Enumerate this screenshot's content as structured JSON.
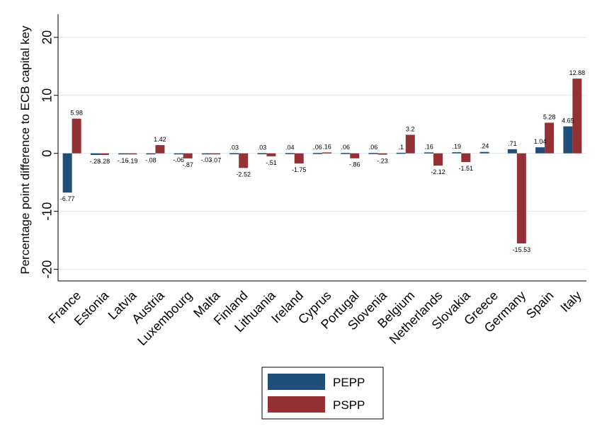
{
  "chart_data": {
    "type": "bar",
    "ylabel": "Percentage point difference to ECB capital key",
    "xlabel": "",
    "ylim": [
      -22,
      24
    ],
    "yticks": [
      -20,
      -10,
      0,
      10,
      20
    ],
    "ytick_labels": [
      "-20",
      "-10",
      "0",
      "10",
      "20"
    ],
    "grid": true,
    "legend_position": "bottom",
    "categories": [
      "France",
      "Estonia",
      "Latvia",
      "Austria",
      "Luxembourg",
      "Malta",
      "Finland",
      "Lithuania",
      "Ireland",
      "Cyprus",
      "Portugal",
      "Slovenia",
      "Belgium",
      "Netherlands",
      "Slovakia",
      "Greece",
      "Germany",
      "Spain",
      "Italy"
    ],
    "series": [
      {
        "name": "PEPP",
        "color": "#1f4e79",
        "values": [
          -6.77,
          -0.28,
          -0.16,
          -0.08,
          -0.06,
          -0.03,
          0.03,
          0.03,
          0.04,
          0.06,
          0.06,
          0.06,
          0.1,
          0.16,
          0.19,
          0.24,
          0.71,
          1.04,
          4.65
        ],
        "labels": [
          "-6.77",
          "-.28",
          "-.16",
          "-.08",
          "-.06",
          "-.03",
          ".03",
          ".03",
          ".04",
          ".06",
          ".06",
          ".06",
          ".1",
          ".16",
          ".19",
          ".24",
          ".71",
          "1.04",
          "4.65"
        ]
      },
      {
        "name": "PSPP",
        "color": "#943135",
        "values": [
          5.98,
          -0.28,
          -0.19,
          1.42,
          -0.87,
          -0.07,
          -2.52,
          -0.51,
          -1.75,
          0.16,
          -0.86,
          -0.23,
          3.2,
          -2.12,
          -1.51,
          null,
          -15.53,
          5.28,
          12.88
        ],
        "labels": [
          "5.98",
          "-.28",
          "-.19",
          "1.42",
          "-.87",
          "-.07",
          "-2.52",
          "-.51",
          "-1.75",
          ".16",
          "-.86",
          "-.23",
          "3.2",
          "-2.12",
          "-1.51",
          "",
          "-15.53",
          "5.28",
          "12.88"
        ]
      }
    ]
  }
}
